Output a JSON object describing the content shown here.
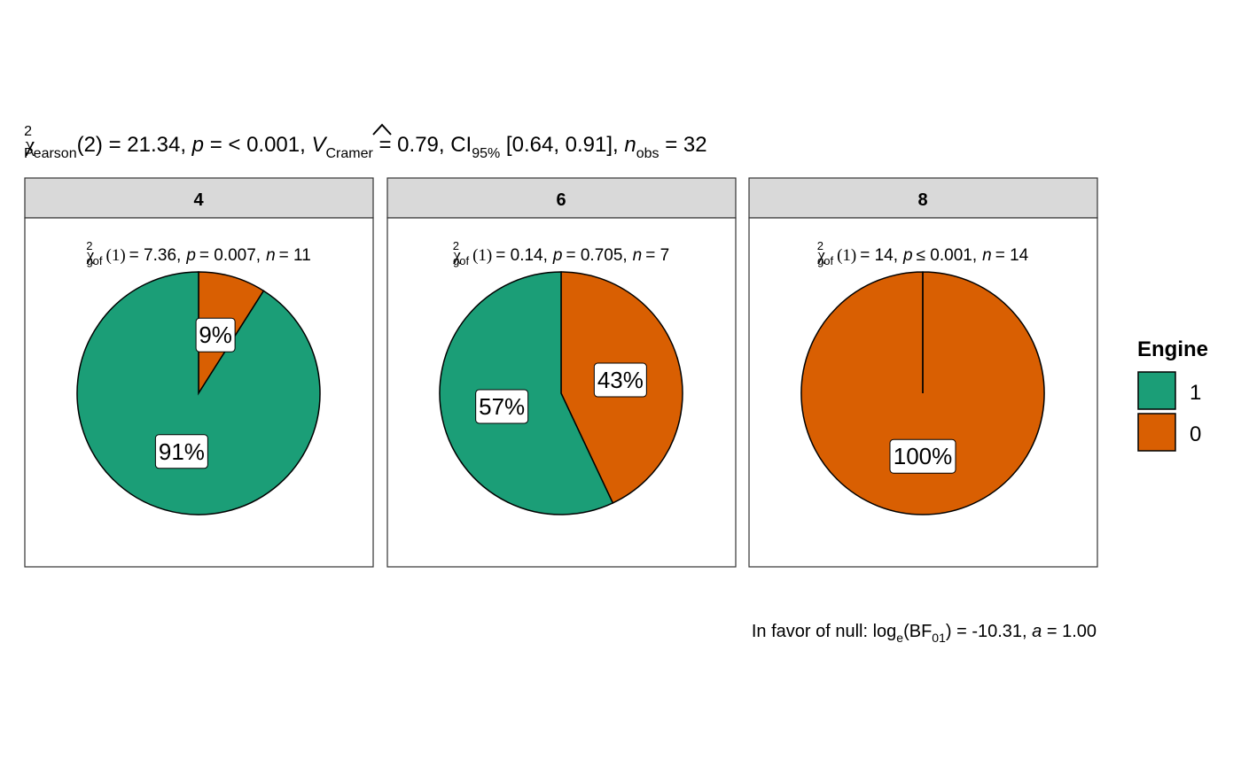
{
  "subtitle": {
    "chi": "χ",
    "sup": "2",
    "sub": "Pearson",
    "df": "(2) = 21.34, ",
    "p_sym": "p",
    "p_val": " = < 0.001, ",
    "v_sym": "V",
    "v_sub": "Cramer",
    "v_val": " = 0.79, CI",
    "ci_sub": "95%",
    "ci_val": " [0.64, 0.91], ",
    "n_sym": "n",
    "n_sub": "obs",
    "n_val": " = 32"
  },
  "caption": {
    "pre": "In favor of null: log",
    "e_sub": "e",
    "bf": "(BF",
    "bf_sub": "01",
    "post": ") = -10.31, ",
    "a_sym": "a",
    "a_val": " = 1.00"
  },
  "legend": {
    "title": "Engine",
    "items": [
      {
        "label": "1",
        "color": "#1B9E77"
      },
      {
        "label": "0",
        "color": "#D95F02"
      }
    ]
  },
  "chart_data": {
    "type": "pie",
    "facets": [
      {
        "strip": "4",
        "stat": {
          "chi": "χ",
          "sup": "2",
          "sub": "gof",
          "df": "(1)",
          "eq": "= 7.36,",
          "p": "p",
          "p_rel": "= 0.007,",
          "n": "n",
          "n_val": "= 11"
        },
        "slices": [
          {
            "category": "1",
            "percent": 91,
            "label": "91%",
            "color": "#1B9E77"
          },
          {
            "category": "0",
            "percent": 9,
            "label": "9%",
            "color": "#D95F02"
          }
        ]
      },
      {
        "strip": "6",
        "stat": {
          "chi": "χ",
          "sup": "2",
          "sub": "gof",
          "df": "(1)",
          "eq": "= 0.14,",
          "p": "p",
          "p_rel": "= 0.705,",
          "n": "n",
          "n_val": "= 7"
        },
        "slices": [
          {
            "category": "1",
            "percent": 57,
            "label": "57%",
            "color": "#1B9E77"
          },
          {
            "category": "0",
            "percent": 43,
            "label": "43%",
            "color": "#D95F02"
          }
        ]
      },
      {
        "strip": "8",
        "stat": {
          "chi": "χ",
          "sup": "2",
          "sub": "gof",
          "df": "(1)",
          "eq": "= 14,",
          "p": "p",
          "p_rel": "≤ 0.001,",
          "n": "n",
          "n_val": "= 14"
        },
        "slices": [
          {
            "category": "1",
            "percent": 0,
            "label": "",
            "color": "#1B9E77"
          },
          {
            "category": "0",
            "percent": 100,
            "label": "100%",
            "color": "#D95F02"
          }
        ]
      }
    ]
  }
}
